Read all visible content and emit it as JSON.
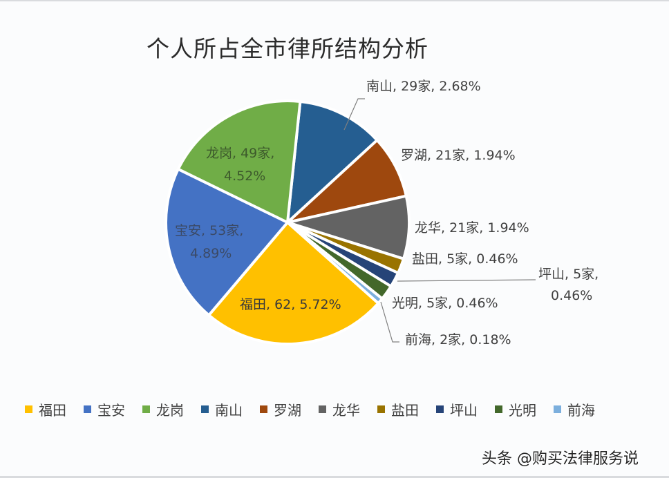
{
  "chart_data": {
    "type": "pie",
    "title": "个人所占全市律所结构分析",
    "unit": "家",
    "start_angle_deg": 6,
    "direction": "clockwise",
    "categories": [
      "南山",
      "罗湖",
      "龙华",
      "盐田",
      "坪山",
      "光明",
      "前海",
      "福田",
      "宝安",
      "龙岗"
    ],
    "values": [
      29,
      21,
      21,
      5,
      5,
      5,
      2,
      62,
      53,
      49
    ],
    "percent_labels": [
      "2.68%",
      "1.94%",
      "1.94%",
      "0.46%",
      "0.46%",
      "0.46%",
      "0.18%",
      "5.72%",
      "4.89%",
      "4.52%"
    ],
    "colors": [
      "#255e91",
      "#9e480e",
      "#636363",
      "#997300",
      "#264478",
      "#43682b",
      "#7cafdd",
      "#ffc000",
      "#4472c4",
      "#70ad47"
    ],
    "data_labels": [
      "南山, 29家, 2.68%",
      "罗湖, 21家, 1.94%",
      "龙华, 21家, 1.94%",
      "盐田, 5家, 0.46%",
      "坪山, 5家, 0.46%",
      "光明, 5家, 0.46%",
      "前海, 2家, 0.18%",
      "福田, 62, 5.72%",
      "宝安, 53家, 4.89%",
      "龙岗, 49家, 4.52%"
    ],
    "legend": [
      "福田",
      "宝安",
      "龙岗",
      "南山",
      "罗湖",
      "龙华",
      "盐田",
      "坪山",
      "光明",
      "前海"
    ],
    "legend_position": "bottom"
  },
  "title": "个人所占全市律所结构分析",
  "labels": {
    "nanshan": "南山, 29家, 2.68%",
    "luohu": "罗湖, 21家, 1.94%",
    "longhua": "龙华, 21家, 1.94%",
    "yantian": "盐田, 5家, 0.46%",
    "pingshan_1": "坪山, 5家,",
    "pingshan_2": "0.46%",
    "guangming": "光明, 5家, 0.46%",
    "qianhai": "前海, 2家, 0.18%",
    "futian": "福田, 62, 5.72%",
    "baoan_1": "宝安, 53家,",
    "baoan_2": "4.89%",
    "longgang_1": "龙岗, 49家,",
    "longgang_2": "4.52%"
  },
  "legend": [
    {
      "label": "福田",
      "color": "#ffc000"
    },
    {
      "label": "宝安",
      "color": "#4472c4"
    },
    {
      "label": "龙岗",
      "color": "#70ad47"
    },
    {
      "label": "南山",
      "color": "#255e91"
    },
    {
      "label": "罗湖",
      "color": "#9e480e"
    },
    {
      "label": "龙华",
      "color": "#636363"
    },
    {
      "label": "盐田",
      "color": "#997300"
    },
    {
      "label": "坪山",
      "color": "#264478"
    },
    {
      "label": "光明",
      "color": "#43682b"
    },
    {
      "label": "前海",
      "color": "#7cafdd"
    }
  ],
  "watermark": "头条 @购买法律服务说"
}
